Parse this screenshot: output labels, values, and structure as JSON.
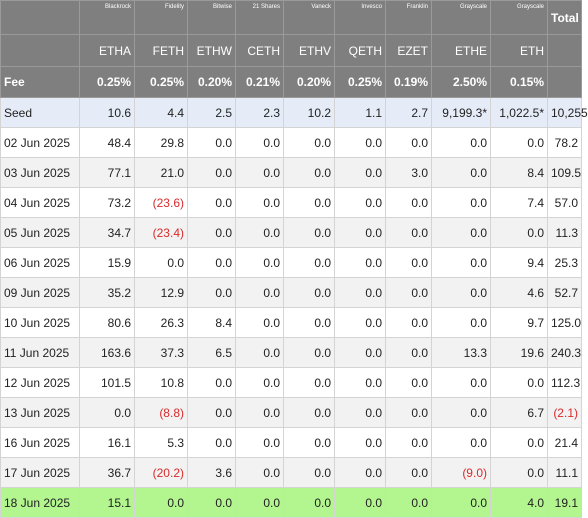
{
  "issuers": [
    "",
    "Blackrock",
    "Fidelity",
    "Bitwise",
    "21 Shares",
    "Vaneck",
    "Invesco",
    "Franklin",
    "Grayscale",
    "Grayscale"
  ],
  "total_label": "Total",
  "tickers": [
    "",
    "ETHA",
    "FETH",
    "ETHW",
    "CETH",
    "ETHV",
    "QETH",
    "EZET",
    "ETHE",
    "ETH",
    ""
  ],
  "fee": [
    "Fee",
    "0.25%",
    "0.25%",
    "0.20%",
    "0.21%",
    "0.20%",
    "0.25%",
    "0.19%",
    "2.50%",
    "0.15%",
    ""
  ],
  "rows": [
    [
      "Seed",
      "10.6",
      "4.4",
      "2.5",
      "2.3",
      "10.2",
      "1.1",
      "2.7",
      "9,199.3*",
      "1,022.5*",
      "10,255"
    ],
    [
      "02 Jun 2025",
      "48.4",
      "29.8",
      "0.0",
      "0.0",
      "0.0",
      "0.0",
      "0.0",
      "0.0",
      "0.0",
      "78.2"
    ],
    [
      "03 Jun 2025",
      "77.1",
      "21.0",
      "0.0",
      "0.0",
      "0.0",
      "0.0",
      "3.0",
      "0.0",
      "8.4",
      "109.5"
    ],
    [
      "04 Jun 2025",
      "73.2",
      "(23.6)",
      "0.0",
      "0.0",
      "0.0",
      "0.0",
      "0.0",
      "0.0",
      "7.4",
      "57.0"
    ],
    [
      "05 Jun 2025",
      "34.7",
      "(23.4)",
      "0.0",
      "0.0",
      "0.0",
      "0.0",
      "0.0",
      "0.0",
      "0.0",
      "11.3"
    ],
    [
      "06 Jun 2025",
      "15.9",
      "0.0",
      "0.0",
      "0.0",
      "0.0",
      "0.0",
      "0.0",
      "0.0",
      "9.4",
      "25.3"
    ],
    [
      "09 Jun 2025",
      "35.2",
      "12.9",
      "0.0",
      "0.0",
      "0.0",
      "0.0",
      "0.0",
      "0.0",
      "4.6",
      "52.7"
    ],
    [
      "10 Jun 2025",
      "80.6",
      "26.3",
      "8.4",
      "0.0",
      "0.0",
      "0.0",
      "0.0",
      "0.0",
      "9.7",
      "125.0"
    ],
    [
      "11 Jun 2025",
      "163.6",
      "37.3",
      "6.5",
      "0.0",
      "0.0",
      "0.0",
      "0.0",
      "13.3",
      "19.6",
      "240.3"
    ],
    [
      "12 Jun 2025",
      "101.5",
      "10.8",
      "0.0",
      "0.0",
      "0.0",
      "0.0",
      "0.0",
      "0.0",
      "0.0",
      "112.3"
    ],
    [
      "13 Jun 2025",
      "0.0",
      "(8.8)",
      "0.0",
      "0.0",
      "0.0",
      "0.0",
      "0.0",
      "0.0",
      "6.7",
      "(2.1)"
    ],
    [
      "16 Jun 2025",
      "16.1",
      "5.3",
      "0.0",
      "0.0",
      "0.0",
      "0.0",
      "0.0",
      "0.0",
      "0.0",
      "21.4"
    ],
    [
      "17 Jun 2025",
      "36.7",
      "(20.2)",
      "3.6",
      "0.0",
      "0.0",
      "0.0",
      "0.0",
      "(9.0)",
      "0.0",
      "11.1"
    ],
    [
      "18 Jun 2025",
      "15.1",
      "0.0",
      "0.0",
      "0.0",
      "0.0",
      "0.0",
      "0.0",
      "0.0",
      "4.0",
      "19.1"
    ]
  ]
}
